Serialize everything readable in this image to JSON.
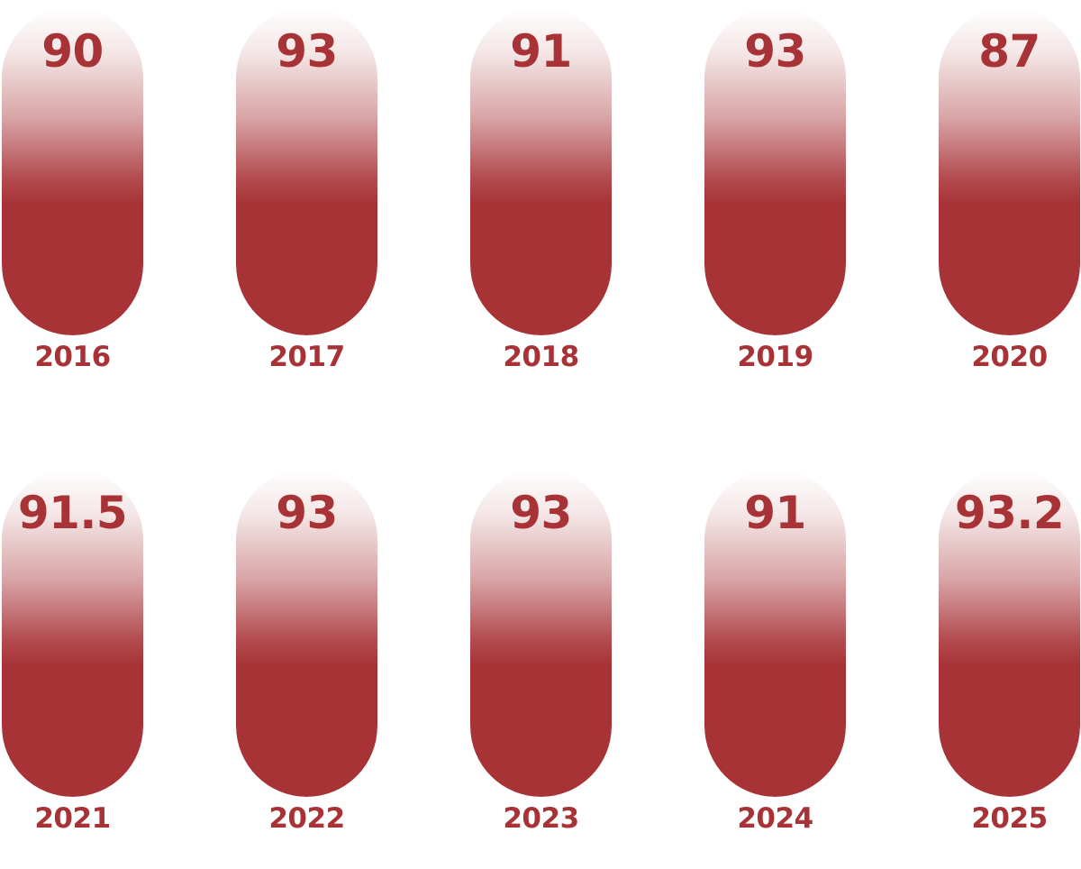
{
  "chart_data": {
    "type": "bar",
    "categories": [
      "2016",
      "2017",
      "2018",
      "2019",
      "2020",
      "2021",
      "2022",
      "2023",
      "2024",
      "2025"
    ],
    "values": [
      90,
      93,
      91,
      93,
      87,
      91.5,
      93,
      93,
      91,
      93.2
    ],
    "value_labels": [
      "90",
      "93",
      "91",
      "93",
      "87",
      "91.5",
      "93",
      "93",
      "91",
      "93.2"
    ],
    "title": "",
    "xlabel": "",
    "ylabel": "",
    "grid": false,
    "legend": "none"
  },
  "colors": {
    "accent": "#a83337",
    "background": "#ffffff"
  }
}
